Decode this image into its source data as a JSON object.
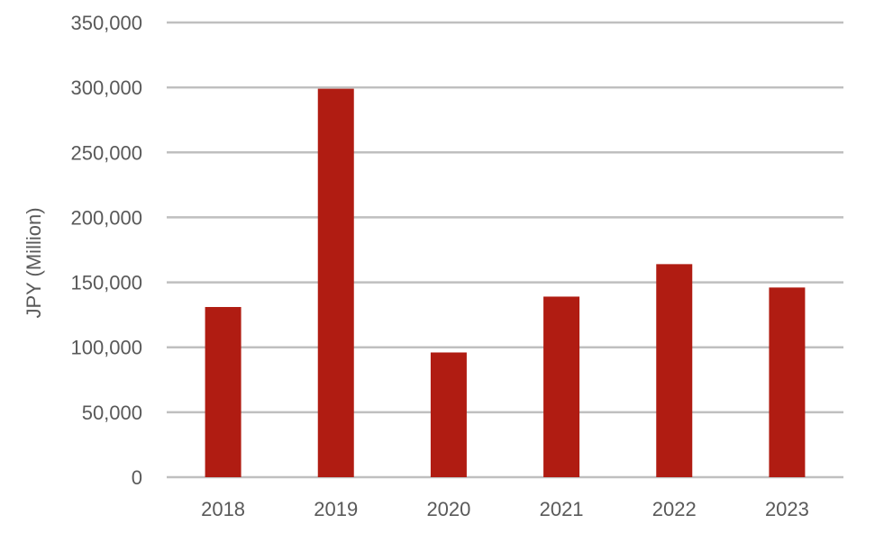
{
  "chart_data": {
    "type": "bar",
    "title": "",
    "xlabel": "",
    "ylabel": "JPY (Million)",
    "categories": [
      "2018",
      "2019",
      "2020",
      "2021",
      "2022",
      "2023"
    ],
    "values": [
      131000,
      299000,
      96000,
      139000,
      164000,
      146000
    ],
    "ylim": [
      0,
      350000
    ],
    "yticks": [
      0,
      50000,
      100000,
      150000,
      200000,
      250000,
      300000,
      350000
    ],
    "ytick_labels": [
      "0",
      "50,000",
      "100,000",
      "150,000",
      "200,000",
      "250,000",
      "300,000",
      "350,000"
    ],
    "grid": true,
    "legend": "none",
    "bar_color": "#B01C12",
    "grid_color": "#BFBFBF",
    "text_color": "#595959"
  }
}
